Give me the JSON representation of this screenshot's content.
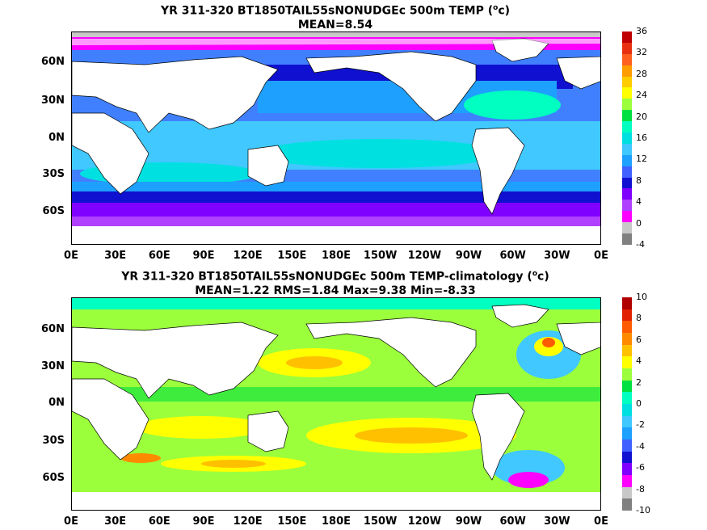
{
  "top": {
    "title_line1": "YR 311-320 BT1850TAIL55sNONUDGEc 500m TEMP (",
    "title_unit_sup": "o",
    "title_unit_tail": "c)",
    "title_line2": "MEAN=8.54",
    "colorbar_labels": [
      "36",
      "32",
      "28",
      "24",
      "20",
      "16",
      "12",
      "8",
      "4",
      "0",
      "-4"
    ],
    "colorbar_colors": [
      "#c00000",
      "#e83010",
      "#ff6020",
      "#ff9d00",
      "#ffcc00",
      "#ffff00",
      "#9bff3c",
      "#00e040",
      "#00ffc0",
      "#00e0e0",
      "#40c8ff",
      "#1ea0ff",
      "#4060ff",
      "#1010d0",
      "#8000ff",
      "#b040ff",
      "#ff00ff",
      "#c8c8c8",
      "#808080"
    ]
  },
  "bottom": {
    "title_line1": "YR 311-320 BT1850TAIL55sNONUDGEc 500m TEMP-climatology (",
    "title_unit_sup": "o",
    "title_unit_tail": "c)",
    "title_line2": "MEAN=1.22   RMS=1.84   Max=9.38   Min=-8.33",
    "colorbar_labels": [
      "10",
      "8",
      "6",
      "4",
      "2",
      "0",
      "-2",
      "-4",
      "-6",
      "-8",
      "-10"
    ],
    "colorbar_colors": [
      "#b00000",
      "#e02000",
      "#ff5a00",
      "#ff8a00",
      "#ffc000",
      "#ffff00",
      "#9bff3c",
      "#00e040",
      "#00ffc0",
      "#00e0e0",
      "#40c8ff",
      "#1ea0ff",
      "#4060ff",
      "#1010d0",
      "#8000ff",
      "#ff00ff",
      "#c8c8c8",
      "#808080"
    ]
  },
  "lat_labels": [
    "60N",
    "30N",
    "0N",
    "30S",
    "60S"
  ],
  "lon_labels": [
    "0E",
    "30E",
    "60E",
    "90E",
    "120E",
    "150E",
    "180E",
    "150W",
    "120W",
    "90W",
    "60W",
    "30W",
    "0E"
  ]
}
